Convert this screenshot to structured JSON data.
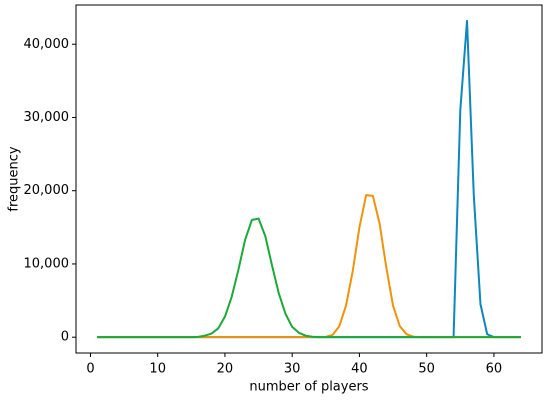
{
  "chart_data": {
    "type": "line",
    "xlabel": "number of players",
    "ylabel": "frequency",
    "x": [
      1,
      2,
      3,
      4,
      5,
      6,
      7,
      8,
      9,
      10,
      11,
      12,
      13,
      14,
      15,
      16,
      17,
      18,
      19,
      20,
      21,
      22,
      23,
      24,
      25,
      26,
      27,
      28,
      29,
      30,
      31,
      32,
      33,
      34,
      35,
      36,
      37,
      38,
      39,
      40,
      41,
      42,
      43,
      44,
      45,
      46,
      47,
      48,
      49,
      50,
      51,
      52,
      53,
      54,
      55,
      56,
      57,
      58,
      59,
      60,
      61,
      62,
      63,
      64
    ],
    "series": [
      {
        "color": "#0e86bf",
        "values": [
          0,
          0,
          0,
          0,
          0,
          0,
          0,
          0,
          0,
          0,
          0,
          0,
          0,
          0,
          0,
          0,
          0,
          0,
          0,
          0,
          0,
          0,
          0,
          0,
          0,
          0,
          0,
          0,
          0,
          0,
          0,
          0,
          0,
          0,
          0,
          0,
          0,
          0,
          0,
          0,
          0,
          0,
          0,
          0,
          0,
          0,
          0,
          0,
          0,
          0,
          0,
          0,
          0,
          0,
          31000,
          43200,
          19500,
          4500,
          400,
          0,
          0,
          0,
          0,
          0
        ]
      },
      {
        "color": "#f0920a",
        "values": [
          0,
          0,
          0,
          0,
          0,
          0,
          0,
          0,
          0,
          0,
          0,
          0,
          0,
          0,
          0,
          0,
          0,
          0,
          0,
          0,
          0,
          0,
          0,
          0,
          0,
          0,
          0,
          0,
          0,
          0,
          0,
          0,
          0,
          0,
          50,
          300,
          1500,
          4300,
          9000,
          15000,
          19400,
          19300,
          15500,
          9500,
          4300,
          1500,
          400,
          80,
          10,
          0,
          0,
          0,
          0,
          0,
          0,
          0,
          0,
          0,
          0,
          0,
          0,
          0,
          0,
          0
        ]
      },
      {
        "color": "#1aaa3a",
        "values": [
          0,
          0,
          0,
          0,
          0,
          0,
          0,
          0,
          0,
          0,
          0,
          0,
          0,
          0,
          10,
          50,
          200,
          500,
          1200,
          2800,
          5500,
          9200,
          13300,
          16000,
          16200,
          13800,
          9800,
          6000,
          3200,
          1400,
          600,
          200,
          60,
          10,
          0,
          0,
          0,
          0,
          0,
          0,
          0,
          0,
          0,
          0,
          0,
          0,
          0,
          0,
          0,
          0,
          0,
          0,
          0,
          0,
          0,
          0,
          0,
          0,
          0,
          0,
          0,
          0,
          0,
          0
        ]
      }
    ],
    "xlim": [
      -2.15,
      67.15
    ],
    "xticks": [
      0,
      10,
      20,
      30,
      40,
      50,
      60
    ],
    "ylim": [
      -2160,
      45360
    ],
    "yticks": [
      0,
      {
        "value": 10000,
        "label": "10,000"
      },
      {
        "value": 20000,
        "label": "20,000"
      },
      {
        "value": 30000,
        "label": "30,000"
      },
      {
        "value": 40000,
        "label": "40,000"
      }
    ]
  }
}
